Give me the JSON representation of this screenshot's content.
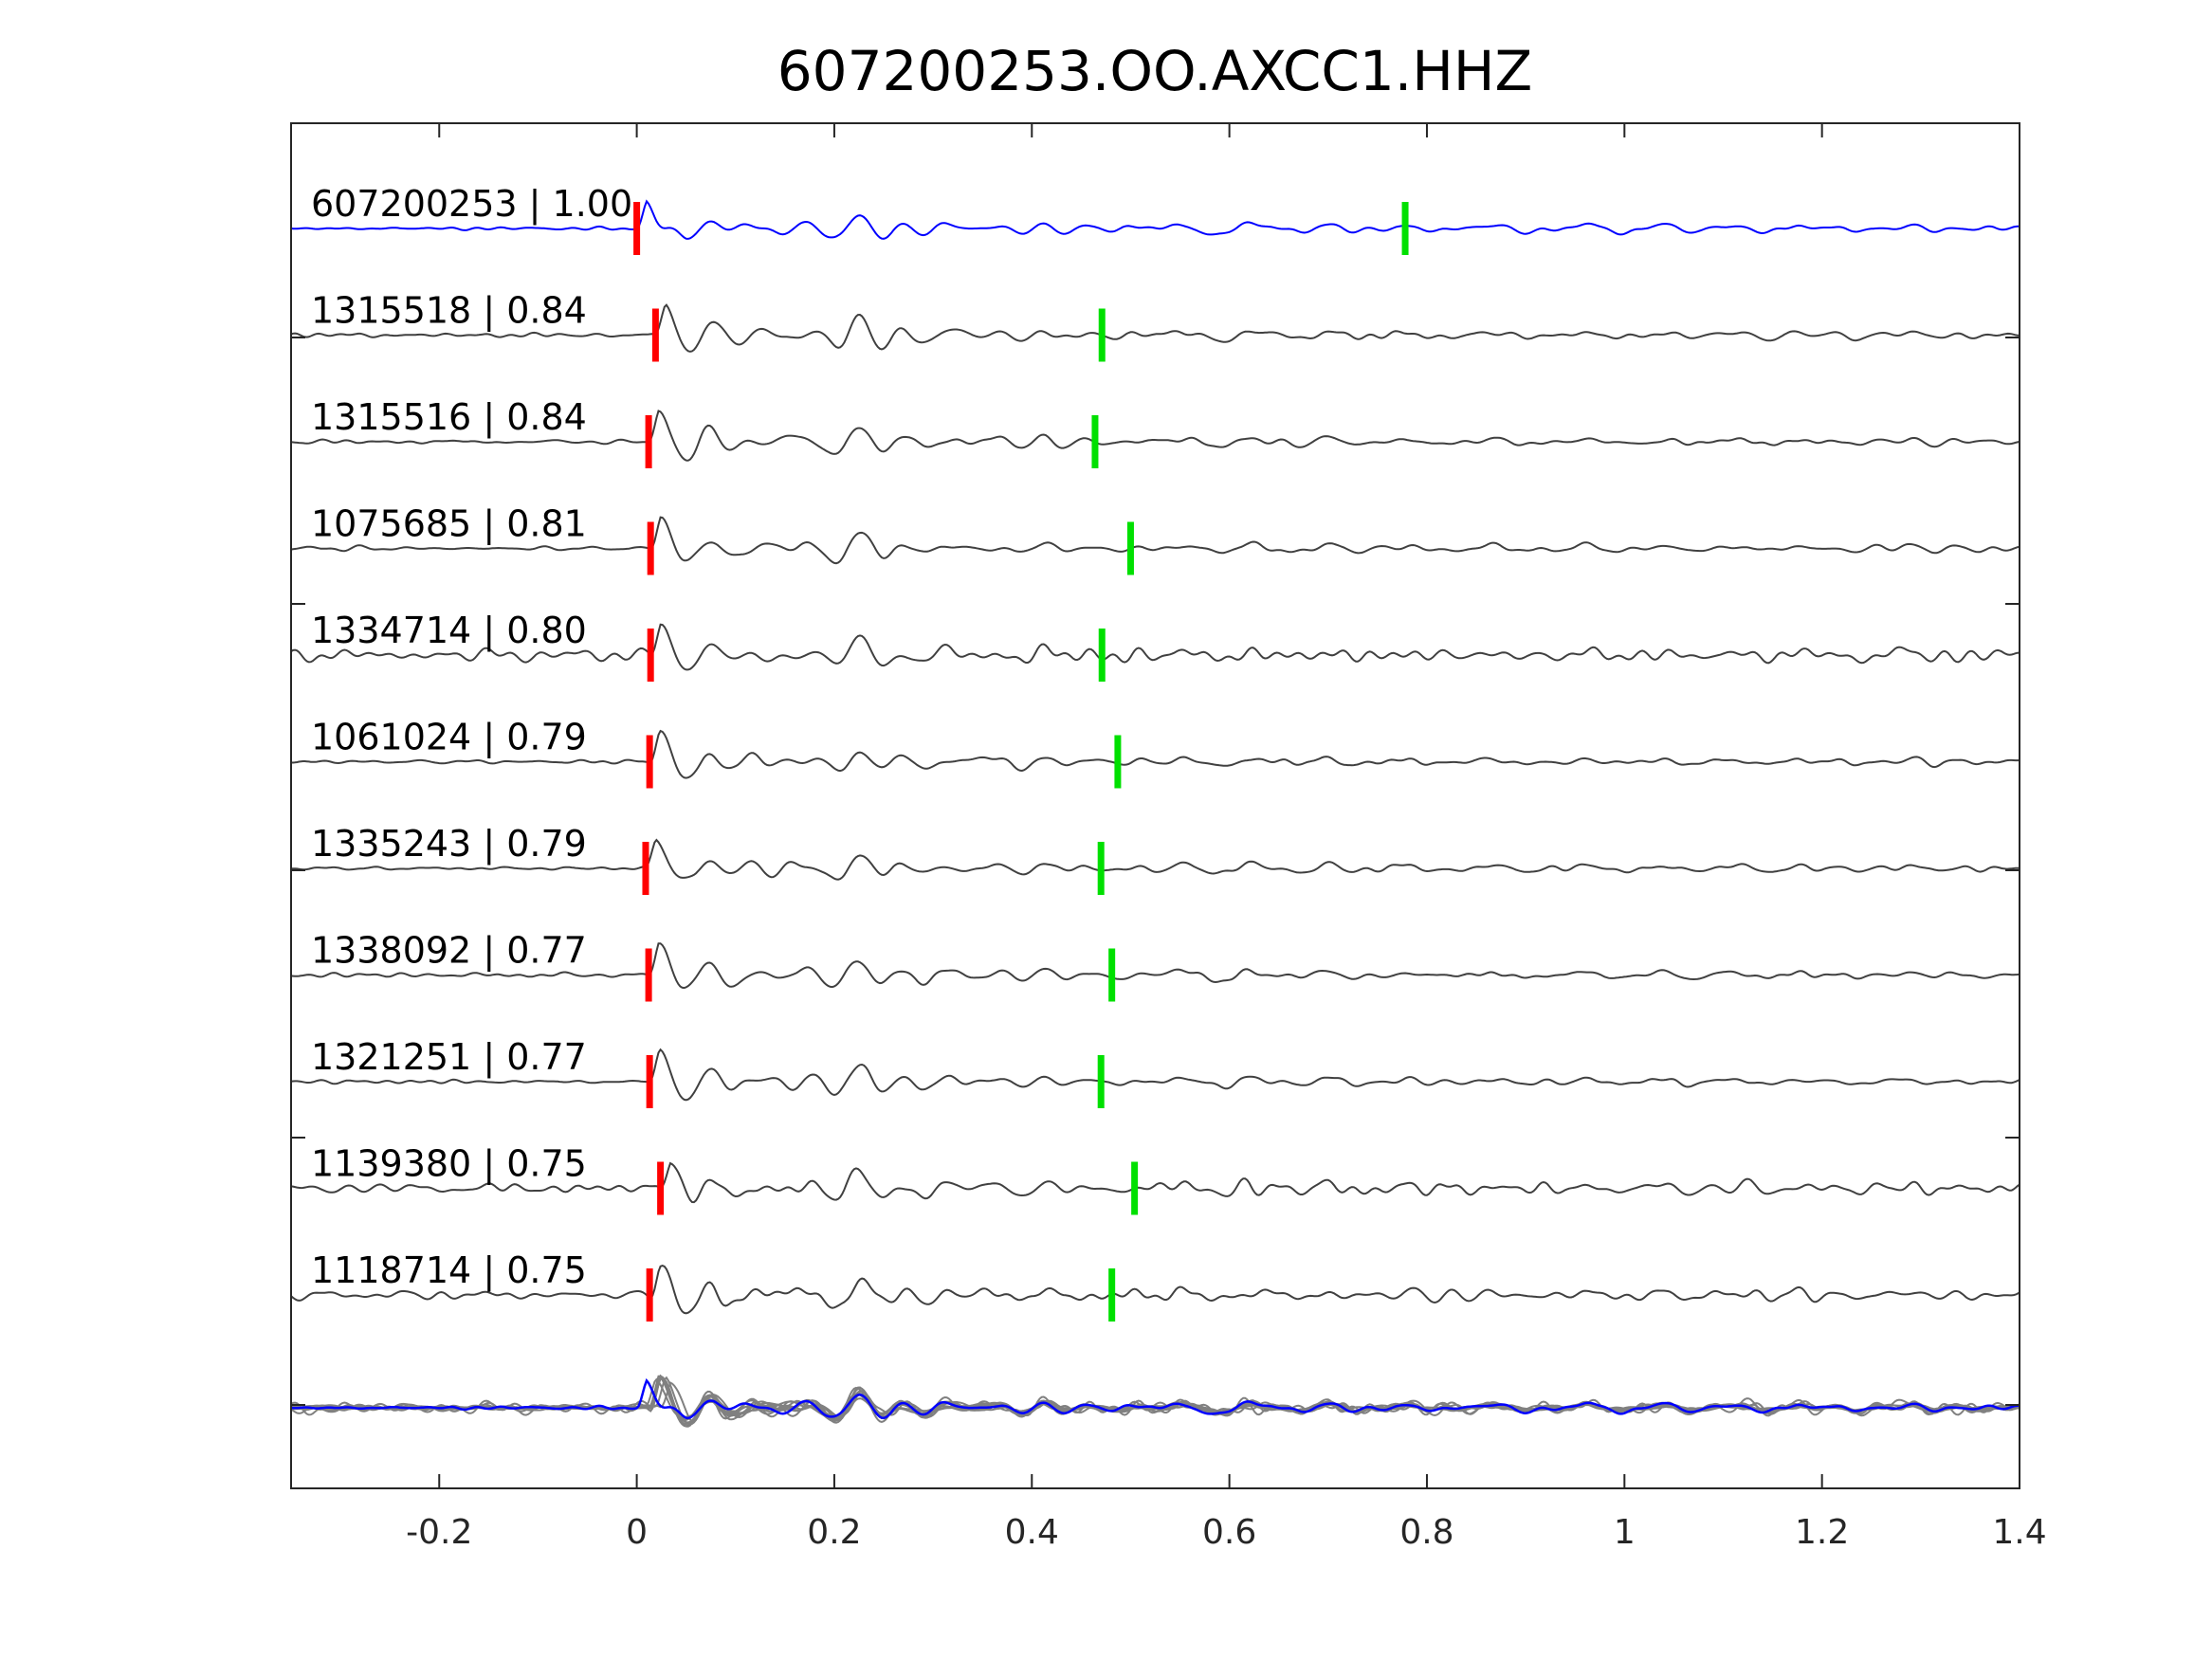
{
  "chart_data": {
    "type": "line",
    "title": "607200253.OO.AXCC1.HHZ",
    "xlabel": "",
    "ylabel": "",
    "xlim": [
      -0.35,
      1.4
    ],
    "x_ticks": [
      "-0.2",
      "0",
      "0.2",
      "0.4",
      "0.6",
      "0.8",
      "1",
      "1.2",
      "1.4"
    ],
    "x_tick_values": [
      -0.2,
      0,
      0.2,
      0.4,
      0.6,
      0.8,
      1,
      1.2,
      1.4
    ],
    "grid": false,
    "colors": {
      "template": "#0000ff",
      "trace": "#404040",
      "stack": "#808080",
      "p_pick": "#ff0000",
      "s_pick": "#00e000"
    },
    "traces": [
      {
        "label": "607200253 | 1.00",
        "id": "607200253",
        "cc": 1.0,
        "p_pick": 0.0,
        "s_pick": 0.778,
        "template": true
      },
      {
        "label": "1315518 | 0.84",
        "id": "1315518",
        "cc": 0.84,
        "p_pick": 0.019,
        "s_pick": 0.471
      },
      {
        "label": "1315516 | 0.84",
        "id": "1315516",
        "cc": 0.84,
        "p_pick": 0.012,
        "s_pick": 0.464
      },
      {
        "label": "1075685 | 0.81",
        "id": "1075685",
        "cc": 0.81,
        "p_pick": 0.014,
        "s_pick": 0.5
      },
      {
        "label": "1334714 | 0.80",
        "id": "1334714",
        "cc": 0.8,
        "p_pick": 0.014,
        "s_pick": 0.471
      },
      {
        "label": "1061024 | 0.79",
        "id": "1061024",
        "cc": 0.79,
        "p_pick": 0.013,
        "s_pick": 0.487
      },
      {
        "label": "1335243 | 0.79",
        "id": "1335243",
        "cc": 0.79,
        "p_pick": 0.009,
        "s_pick": 0.47
      },
      {
        "label": "1338092 | 0.77",
        "id": "1338092",
        "cc": 0.77,
        "p_pick": 0.012,
        "s_pick": 0.481
      },
      {
        "label": "1321251 | 0.77",
        "id": "1321251",
        "cc": 0.77,
        "p_pick": 0.013,
        "s_pick": 0.47
      },
      {
        "label": "1139380 | 0.75",
        "id": "1139380",
        "cc": 0.75,
        "p_pick": 0.024,
        "s_pick": 0.504
      },
      {
        "label": "1118714 | 0.75",
        "id": "1118714",
        "cc": 0.75,
        "p_pick": 0.013,
        "s_pick": 0.481
      }
    ],
    "stack": {
      "description_visible": false
    }
  }
}
